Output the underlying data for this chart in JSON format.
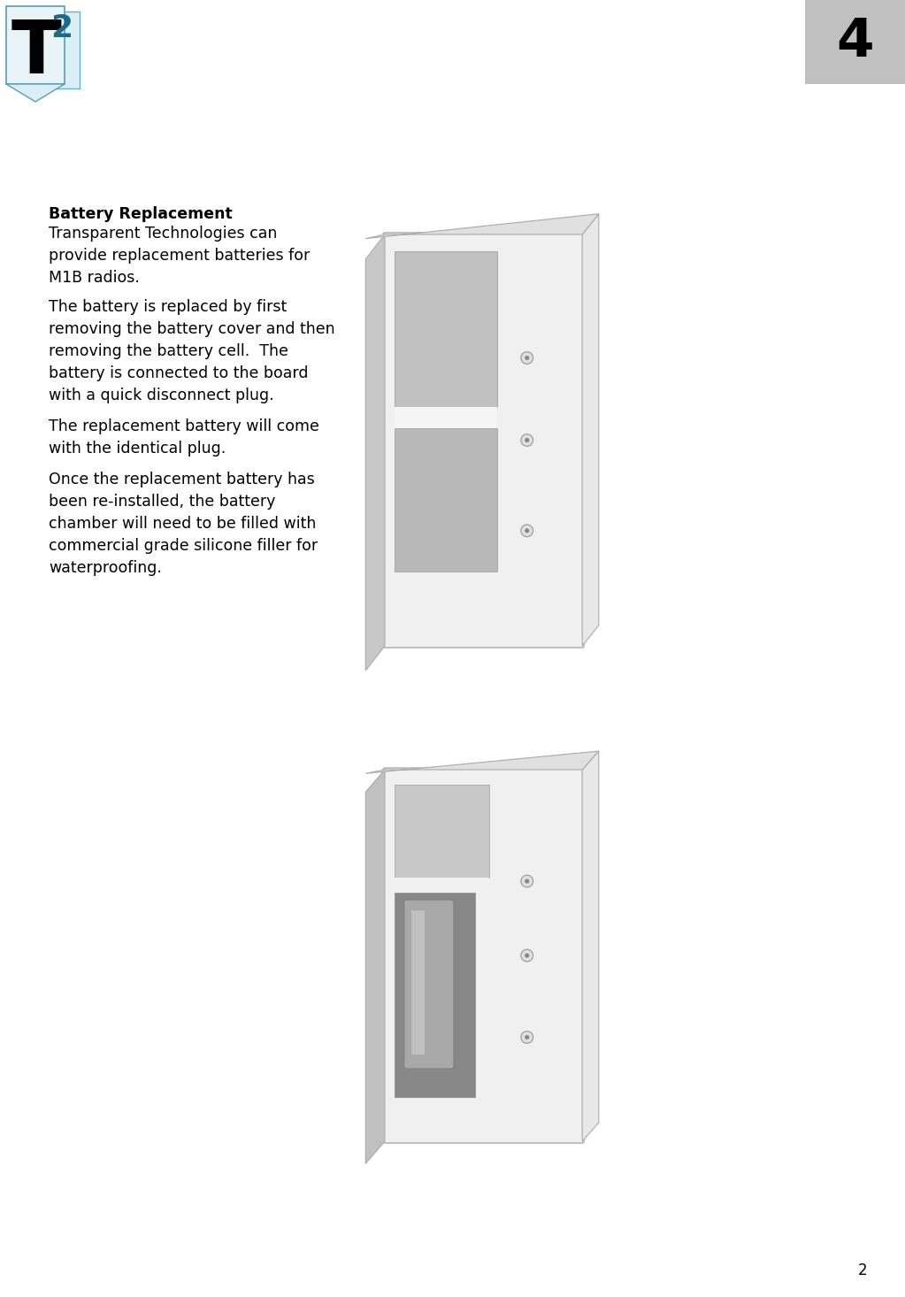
{
  "page_number": "4",
  "footer_number": "2",
  "page_bg": "#ffffff",
  "header_box_color": "#c0c0c0",
  "title_bold": "Battery Replacement",
  "para1": "Transparent Technologies can\nprovide replacement batteries for\nM1B radios.",
  "para2": "The battery is replaced by first\nremoving the battery cover and then\nremoving the battery cell.  The\nbattery is connected to the board\nwith a quick disconnect plug.",
  "para3": "The replacement battery will come\nwith the identical plug.",
  "para4": "Once the replacement battery has\nbeen re-installed, the battery\nchamber will need to be filled with\ncommercial grade silicone filler for\nwaterproofing.",
  "text_fontsize": 12.5
}
